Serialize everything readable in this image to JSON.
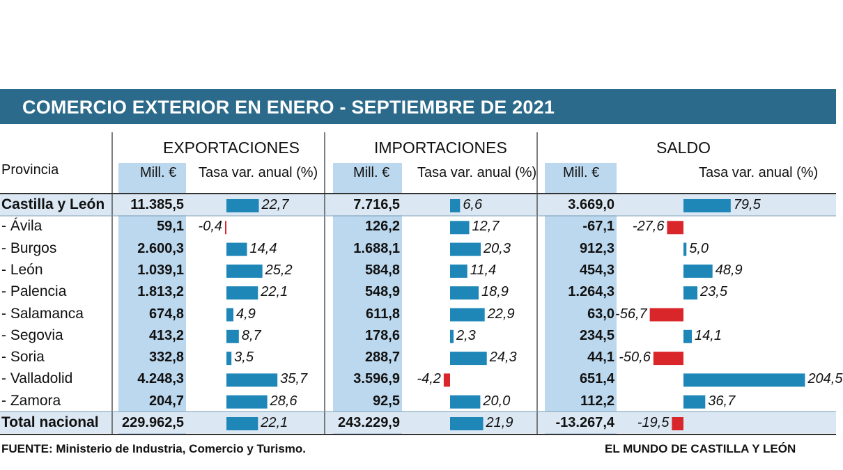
{
  "title": "COMERCIO EXTERIOR EN ENERO - SEPTIEMBRE DE 2021",
  "headers": {
    "provincia": "Provincia",
    "exportaciones": "EXPORTACIONES",
    "importaciones": "IMPORTACIONES",
    "saldo": "SALDO",
    "mill": "Mill. €",
    "tasa": "Tasa var. anual (%)"
  },
  "rows": [
    {
      "name": "Castilla y León",
      "exp": "11.385,5",
      "exp_rate": 22.7,
      "imp": "7.716,5",
      "imp_rate": 6.6,
      "saldo": "3.669,0",
      "saldo_rate": 79.5
    },
    {
      "name": "- Ávila",
      "exp": "59,1",
      "exp_rate": -0.4,
      "imp": "126,2",
      "imp_rate": 12.7,
      "saldo": "-67,1",
      "saldo_rate": -27.6
    },
    {
      "name": "- Burgos",
      "exp": "2.600,3",
      "exp_rate": 14.4,
      "imp": "1.688,1",
      "imp_rate": 20.3,
      "saldo": "912,3",
      "saldo_rate": 5.0
    },
    {
      "name": "- León",
      "exp": "1.039,1",
      "exp_rate": 25.2,
      "imp": "584,8",
      "imp_rate": 11.4,
      "saldo": "454,3",
      "saldo_rate": 48.9
    },
    {
      "name": "- Palencia",
      "exp": "1.813,2",
      "exp_rate": 22.1,
      "imp": "548,9",
      "imp_rate": 18.9,
      "saldo": "1.264,3",
      "saldo_rate": 23.5
    },
    {
      "name": "- Salamanca",
      "exp": "674,8",
      "exp_rate": 4.9,
      "imp": "611,8",
      "imp_rate": 22.9,
      "saldo": "63,0",
      "saldo_rate": -56.7
    },
    {
      "name": "- Segovia",
      "exp": "413,2",
      "exp_rate": 8.7,
      "imp": "178,6",
      "imp_rate": 2.3,
      "saldo": "234,5",
      "saldo_rate": 14.1
    },
    {
      "name": "- Soria",
      "exp": "332,8",
      "exp_rate": 3.5,
      "imp": "288,7",
      "imp_rate": 24.3,
      "saldo": "44,1",
      "saldo_rate": -50.6
    },
    {
      "name": "- Valladolid",
      "exp": "4.248,3",
      "exp_rate": 35.7,
      "imp": "3.596,9",
      "imp_rate": -4.2,
      "saldo": "651,4",
      "saldo_rate": 204.5
    },
    {
      "name": "- Zamora",
      "exp": "204,7",
      "exp_rate": 28.6,
      "imp": "92,5",
      "imp_rate": 20.0,
      "saldo": "112,2",
      "saldo_rate": 36.7
    },
    {
      "name": "Total nacional",
      "exp": "229.962,5",
      "exp_rate": 22.1,
      "imp": "243.229,9",
      "imp_rate": 21.9,
      "saldo": "-13.267,4",
      "saldo_rate": -19.5
    }
  ],
  "chart_data": {
    "type": "bar",
    "title": "COMERCIO EXTERIOR EN ENERO - SEPTIEMBRE DE 2021",
    "categories": [
      "Castilla y León",
      "- Ávila",
      "- Burgos",
      "- León",
      "- Palencia",
      "- Salamanca",
      "- Segovia",
      "- Soria",
      "- Valladolid",
      "- Zamora",
      "Total nacional"
    ],
    "series": [
      {
        "name": "EXPORTACIONES Tasa var. anual (%)",
        "values": [
          22.7,
          -0.4,
          14.4,
          25.2,
          22.1,
          4.9,
          8.7,
          3.5,
          35.7,
          28.6,
          22.1
        ]
      },
      {
        "name": "IMPORTACIONES Tasa var. anual (%)",
        "values": [
          6.6,
          12.7,
          20.3,
          11.4,
          18.9,
          22.9,
          2.3,
          24.3,
          -4.2,
          20.0,
          21.9
        ]
      },
      {
        "name": "SALDO Tasa var. anual (%)",
        "values": [
          79.5,
          -27.6,
          5.0,
          48.9,
          23.5,
          -56.7,
          14.1,
          -50.6,
          204.5,
          36.7,
          -19.5
        ]
      }
    ],
    "orientation": "horizontal",
    "ylabel": "Tasa var. anual (%)"
  },
  "colors": {
    "title_band": "#2b6a8a",
    "positive_bar": "#1f86b8",
    "negative_bar": "#d9262b",
    "column_shade": "#bcd8ee",
    "row_highlight": "#dbe8f3"
  },
  "footer": {
    "source": "FUENTE:  Ministerio de Industria, Comercio y Turismo.",
    "brand": "EL MUNDO DE CASTILLA Y LEÓN"
  }
}
